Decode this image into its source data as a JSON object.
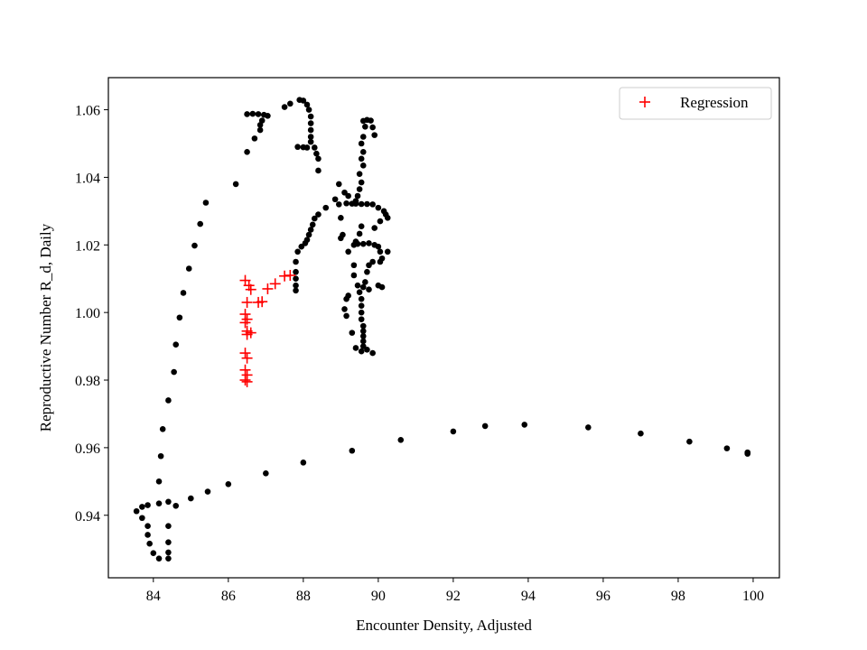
{
  "chart_data": {
    "type": "scatter",
    "xlabel": "Encounter Density, Adjusted",
    "ylabel": "Reproductive Number R_d, Daily",
    "xlim": [
      82.8,
      100.7
    ],
    "ylim": [
      0.9215,
      1.0695
    ],
    "xticks": [
      84,
      86,
      88,
      90,
      92,
      94,
      96,
      98,
      100
    ],
    "yticks": [
      0.94,
      0.96,
      0.98,
      1.0,
      1.02,
      1.04,
      1.06
    ],
    "ytick_labels": [
      "0.94",
      "0.96",
      "0.98",
      "1.00",
      "1.02",
      "1.04",
      "1.06"
    ],
    "legend": {
      "position": "top-right",
      "entries": [
        "Regression"
      ]
    },
    "series": [
      {
        "name": "",
        "marker": "dot",
        "color": "#000000",
        "points": [
          [
            99.85,
            0.9582
          ],
          [
            99.85,
            0.9586
          ],
          [
            99.3,
            0.9598
          ],
          [
            98.3,
            0.9618
          ],
          [
            97.0,
            0.9642
          ],
          [
            95.6,
            0.966
          ],
          [
            93.9,
            0.9668
          ],
          [
            92.85,
            0.9664
          ],
          [
            92.0,
            0.9648
          ],
          [
            90.6,
            0.9623
          ],
          [
            89.3,
            0.9591
          ],
          [
            88.0,
            0.9556
          ],
          [
            87.0,
            0.9524
          ],
          [
            86.0,
            0.9492
          ],
          [
            85.45,
            0.947
          ],
          [
            85.0,
            0.945
          ],
          [
            84.6,
            0.9428
          ],
          [
            84.4,
            0.944
          ],
          [
            84.15,
            0.9435
          ],
          [
            83.85,
            0.943
          ],
          [
            83.7,
            0.9425
          ],
          [
            83.55,
            0.9412
          ],
          [
            83.7,
            0.9392
          ],
          [
            83.85,
            0.9368
          ],
          [
            83.85,
            0.9342
          ],
          [
            83.9,
            0.9316
          ],
          [
            84.0,
            0.9288
          ],
          [
            84.15,
            0.9272
          ],
          [
            84.4,
            0.9272
          ],
          [
            84.4,
            0.929
          ],
          [
            84.4,
            0.932
          ],
          [
            84.4,
            0.9368
          ],
          [
            84.15,
            0.95
          ],
          [
            84.2,
            0.9575
          ],
          [
            84.25,
            0.9655
          ],
          [
            84.4,
            0.974
          ],
          [
            84.55,
            0.9824
          ],
          [
            84.6,
            0.9905
          ],
          [
            84.7,
            0.9985
          ],
          [
            84.8,
            1.0058
          ],
          [
            84.95,
            1.013
          ],
          [
            85.1,
            1.0198
          ],
          [
            85.25,
            1.0262
          ],
          [
            85.4,
            1.0325
          ],
          [
            86.2,
            1.038
          ],
          [
            86.5,
            1.0475
          ],
          [
            86.7,
            1.0515
          ],
          [
            86.5,
            1.0587
          ],
          [
            86.65,
            1.0588
          ],
          [
            86.8,
            1.0587
          ],
          [
            86.95,
            1.0585
          ],
          [
            86.9,
            1.0568
          ],
          [
            86.85,
            1.0555
          ],
          [
            86.85,
            1.054
          ],
          [
            87.05,
            1.0582
          ],
          [
            87.5,
            1.0608
          ],
          [
            87.65,
            1.0618
          ],
          [
            87.9,
            1.0629
          ],
          [
            88.0,
            1.0627
          ],
          [
            88.1,
            1.0615
          ],
          [
            88.15,
            1.06
          ],
          [
            88.2,
            1.058
          ],
          [
            88.2,
            1.056
          ],
          [
            88.2,
            1.054
          ],
          [
            88.2,
            1.052
          ],
          [
            88.2,
            1.0505
          ],
          [
            88.3,
            1.0488
          ],
          [
            88.35,
            1.047
          ],
          [
            88.4,
            1.0455
          ],
          [
            88.4,
            1.042
          ],
          [
            87.85,
            1.049
          ],
          [
            88.0,
            1.0489
          ],
          [
            88.1,
            1.0488
          ],
          [
            89.6,
            1.0567
          ],
          [
            89.7,
            1.057
          ],
          [
            89.8,
            1.0568
          ],
          [
            89.65,
            1.055
          ],
          [
            89.85,
            1.0548
          ],
          [
            89.9,
            1.0525
          ],
          [
            89.6,
            1.052
          ],
          [
            89.55,
            1.05
          ],
          [
            89.6,
            1.0475
          ],
          [
            89.55,
            1.0455
          ],
          [
            89.6,
            1.0435
          ],
          [
            89.5,
            1.041
          ],
          [
            89.55,
            1.0385
          ],
          [
            89.5,
            1.0365
          ],
          [
            89.45,
            1.0345
          ],
          [
            89.4,
            1.033
          ],
          [
            89.2,
            1.0345
          ],
          [
            89.1,
            1.0355
          ],
          [
            88.95,
            1.038
          ],
          [
            88.85,
            1.0335
          ],
          [
            88.95,
            1.032
          ],
          [
            89.15,
            1.0323
          ],
          [
            89.3,
            1.0322
          ],
          [
            89.4,
            1.0322
          ],
          [
            89.55,
            1.0321
          ],
          [
            89.7,
            1.0321
          ],
          [
            89.85,
            1.032
          ],
          [
            90.0,
            1.031
          ],
          [
            90.15,
            1.03
          ],
          [
            90.2,
            1.029
          ],
          [
            90.25,
            1.028
          ],
          [
            90.05,
            1.027
          ],
          [
            89.9,
            1.025
          ],
          [
            89.55,
            1.0255
          ],
          [
            89.5,
            1.0233
          ],
          [
            89.4,
            1.021
          ],
          [
            89.35,
            1.02
          ],
          [
            89.45,
            1.0203
          ],
          [
            89.6,
            1.0203
          ],
          [
            89.75,
            1.0205
          ],
          [
            89.9,
            1.02
          ],
          [
            90.0,
            1.0195
          ],
          [
            90.05,
            1.018
          ],
          [
            90.25,
            1.018
          ],
          [
            90.1,
            1.016
          ],
          [
            90.05,
            1.015
          ],
          [
            89.85,
            1.015
          ],
          [
            89.75,
            1.014
          ],
          [
            89.7,
            1.012
          ],
          [
            89.65,
            1.009
          ],
          [
            89.6,
            1.0075
          ],
          [
            89.75,
            1.0068
          ],
          [
            90.0,
            1.008
          ],
          [
            90.1,
            1.0075
          ],
          [
            89.0,
            1.028
          ],
          [
            89.05,
            1.023
          ],
          [
            89.0,
            1.022
          ],
          [
            89.2,
            1.018
          ],
          [
            89.35,
            1.014
          ],
          [
            89.35,
            1.011
          ],
          [
            89.45,
            1.008
          ],
          [
            89.5,
            1.006
          ],
          [
            89.55,
            1.004
          ],
          [
            89.55,
            1.002
          ],
          [
            89.55,
            1.0
          ],
          [
            89.55,
            0.998
          ],
          [
            89.6,
            0.996
          ],
          [
            89.6,
            0.9945
          ],
          [
            89.6,
            0.993
          ],
          [
            89.6,
            0.9915
          ],
          [
            89.6,
            0.99
          ],
          [
            89.7,
            0.989
          ],
          [
            89.85,
            0.988
          ],
          [
            89.55,
            0.9885
          ],
          [
            89.4,
            0.9895
          ],
          [
            89.3,
            0.994
          ],
          [
            89.15,
            0.999
          ],
          [
            89.1,
            1.001
          ],
          [
            89.15,
            1.004
          ],
          [
            89.2,
            1.005
          ],
          [
            88.6,
            1.031
          ],
          [
            88.4,
            1.029
          ],
          [
            88.3,
            1.0278
          ],
          [
            88.25,
            1.026
          ],
          [
            88.2,
            1.0245
          ],
          [
            88.15,
            1.023
          ],
          [
            88.1,
            1.0215
          ],
          [
            88.05,
            1.0205
          ],
          [
            87.95,
            1.0195
          ],
          [
            87.85,
            1.018
          ],
          [
            87.8,
            1.015
          ],
          [
            87.8,
            1.012
          ],
          [
            87.8,
            1.01
          ],
          [
            87.8,
            1.008
          ],
          [
            87.8,
            1.0065
          ]
        ]
      },
      {
        "name": "Regression",
        "marker": "plus",
        "color": "#ff0000",
        "points": [
          [
            86.45,
            1.0095
          ],
          [
            86.55,
            1.008
          ],
          [
            86.6,
            1.0068
          ],
          [
            86.5,
            1.003
          ],
          [
            86.45,
            0.9995
          ],
          [
            86.5,
            0.998
          ],
          [
            86.45,
            0.997
          ],
          [
            86.5,
            0.9945
          ],
          [
            86.5,
            0.9935
          ],
          [
            86.6,
            0.994
          ],
          [
            86.45,
            0.988
          ],
          [
            86.5,
            0.9865
          ],
          [
            86.45,
            0.983
          ],
          [
            86.5,
            0.9815
          ],
          [
            86.45,
            0.98
          ],
          [
            86.5,
            0.9795
          ],
          [
            86.8,
            1.003
          ],
          [
            86.9,
            1.0032
          ],
          [
            87.05,
            1.007
          ],
          [
            87.25,
            1.0085
          ],
          [
            87.5,
            1.0108
          ],
          [
            87.65,
            1.011
          ]
        ]
      }
    ]
  }
}
